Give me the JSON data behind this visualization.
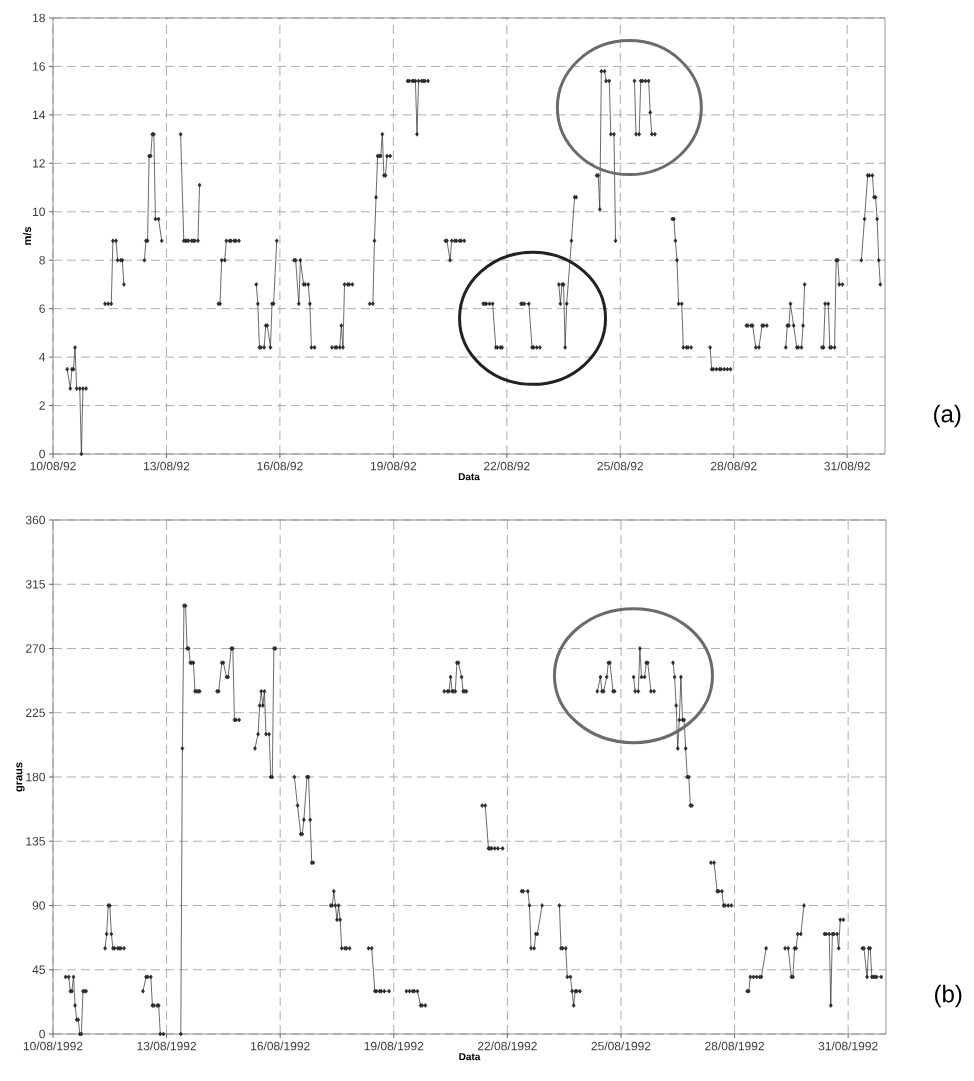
{
  "chart_data": [
    {
      "type": "line",
      "xlabel": "Data",
      "ylabel": "m/s",
      "xlim": [
        "1992-08-10",
        "1992-09-01"
      ],
      "ylim": [
        0,
        18
      ],
      "xticks": [
        {
          "value": "1992-08-10",
          "label": "10/08/92"
        },
        {
          "value": "1992-08-13",
          "label": "13/08/92"
        },
        {
          "value": "1992-08-16",
          "label": "16/08/92"
        },
        {
          "value": "1992-08-19",
          "label": "19/08/92"
        },
        {
          "value": "1992-08-22",
          "label": "22/08/92"
        },
        {
          "value": "1992-08-25",
          "label": "25/08/92"
        },
        {
          "value": "1992-08-28",
          "label": "28/08/92"
        },
        {
          "value": "1992-08-31",
          "label": "31/08/92"
        }
      ],
      "yticks": [
        0,
        2,
        4,
        6,
        8,
        10,
        12,
        14,
        16,
        18
      ],
      "grid": true,
      "marker": "diamond",
      "line_style": "solid",
      "annotations": [
        "(a)"
      ],
      "series": [
        {
          "color": "#2b2b2b",
          "x": [
            "1992-08-10T09:00",
            "1992-08-10T11:00",
            "1992-08-10T12:00",
            "1992-08-10T13:00",
            "1992-08-10T14:00",
            "1992-08-10T15:00",
            "1992-08-10T17:00",
            "1992-08-10T18:00",
            "1992-08-10T19:00",
            "1992-08-10T21:00",
            "1992-08-10T22:00",
            "1992-08-11T09:00",
            "1992-08-11T11:00",
            "1992-08-11T13:00",
            "1992-08-11T14:00",
            "1992-08-11T16:00",
            "1992-08-11T17:00",
            "1992-08-11T19:00",
            "1992-08-11T20:00",
            "1992-08-11T21:00",
            "1992-08-11T22:00",
            "1992-08-12T10:00",
            "1992-08-12T11:00",
            "1992-08-12T12:00",
            "1992-08-12T13:00",
            "1992-08-12T14:00",
            "1992-08-12T15:00",
            "1992-08-12T16:00",
            "1992-08-12T17:00",
            "1992-08-12T19:00",
            "1992-08-12T21:00",
            "1992-08-12T22:00",
            "1992-08-13T09:00",
            "1992-08-13T11:00",
            "1992-08-13T12:00",
            "1992-08-13T13:00",
            "1992-08-13T14:00",
            "1992-08-13T16:00",
            "1992-08-13T17:00",
            "1992-08-13T18:00",
            "1992-08-13T20:00",
            "1992-08-13T21:00",
            "1992-08-13T22:00",
            "1992-08-14T09:00",
            "1992-08-14T10:00",
            "1992-08-14T11:00",
            "1992-08-14T13:00",
            "1992-08-14T14:00",
            "1992-08-14T16:00",
            "1992-08-14T17:00",
            "1992-08-14T19:00",
            "1992-08-14T20:00",
            "1992-08-14T22:00",
            "1992-08-14T23:00",
            "1992-08-15T09:00",
            "1992-08-15T10:00",
            "1992-08-15T11:00",
            "1992-08-15T12:00",
            "1992-08-15T14:00",
            "1992-08-15T15:00",
            "1992-08-15T16:00",
            "1992-08-15T18:00",
            "1992-08-15T19:00",
            "1992-08-15T20:00",
            "1992-08-15T22:00",
            "1992-08-15T23:00",
            "1992-08-16T09:00",
            "1992-08-16T10:00",
            "1992-08-16T12:00",
            "1992-08-16T13:00",
            "1992-08-16T15:00",
            "1992-08-16T16:00",
            "1992-08-16T18:00",
            "1992-08-16T19:00",
            "1992-08-16T20:00",
            "1992-08-16T22:00",
            "1992-08-16T23:00",
            "1992-08-17T09:00",
            "1992-08-17T11:00",
            "1992-08-17T12:00",
            "1992-08-17T14:00",
            "1992-08-17T15:00",
            "1992-08-17T16:00",
            "1992-08-17T17:00",
            "1992-08-17T19:00",
            "1992-08-17T20:00",
            "1992-08-17T22:00",
            "1992-08-17T23:00",
            "1992-08-18T09:00",
            "1992-08-18T11:00",
            "1992-08-18T12:00",
            "1992-08-18T13:00",
            "1992-08-18T14:00",
            "1992-08-18T15:00",
            "1992-08-18T16:00",
            "1992-08-18T17:00",
            "1992-08-18T18:00",
            "1992-08-18T19:00",
            "1992-08-18T20:00",
            "1992-08-18T22:00",
            "1992-08-18T23:00",
            "1992-08-19T09:00",
            "1992-08-19T10:00",
            "1992-08-19T12:00",
            "1992-08-19T13:00",
            "1992-08-19T14:00",
            "1992-08-19T15:00",
            "1992-08-19T16:00",
            "1992-08-19T18:00",
            "1992-08-19T19:00",
            "1992-08-19T20:00",
            "1992-08-19T22:00",
            "1992-08-19T23:00",
            "1992-08-20T09:00",
            "1992-08-20T10:00",
            "1992-08-20T12:00",
            "1992-08-20T13:00",
            "1992-08-20T15:00",
            "1992-08-20T16:00",
            "1992-08-20T18:00",
            "1992-08-20T19:00",
            "1992-08-20T21:00",
            "1992-08-20T22:00",
            "1992-08-21T09:00",
            "1992-08-21T10:00",
            "1992-08-21T11:00",
            "1992-08-21T13:00",
            "1992-08-21T15:00",
            "1992-08-21T17:00",
            "1992-08-21T18:00",
            "1992-08-21T20:00",
            "1992-08-21T21:00",
            "1992-08-21T22:00",
            "1992-08-22T09:00",
            "1992-08-22T10:00",
            "1992-08-22T11:00",
            "1992-08-22T14:00",
            "1992-08-22T16:00",
            "1992-08-22T17:00",
            "1992-08-22T19:00",
            "1992-08-22T21:00",
            "1992-08-22T22:00",
            "1992-08-23T09:00",
            "1992-08-23T10:00",
            "1992-08-23T11:00",
            "1992-08-23T12:00",
            "1992-08-23T13:00",
            "1992-08-23T14:00",
            "1992-08-23T17:00",
            "1992-08-23T19:00",
            "1992-08-23T20:00",
            "1992-08-23T21:00",
            "1992-08-24T09:00",
            "1992-08-24T10:00",
            "1992-08-24T11:00",
            "1992-08-24T12:00",
            "1992-08-24T14:00",
            "1992-08-24T15:00",
            "1992-08-24T17:00",
            "1992-08-24T18:00",
            "1992-08-24T20:00",
            "1992-08-24T21:00",
            "1992-08-24T22:00",
            "1992-08-25T09:00",
            "1992-08-25T10:00",
            "1992-08-25T12:00",
            "1992-08-25T13:00",
            "1992-08-25T14:00",
            "1992-08-25T16:00",
            "1992-08-25T18:00",
            "1992-08-25T19:00",
            "1992-08-25T20:00",
            "1992-08-25T22:00",
            "1992-08-25T23:00",
            "1992-08-26T09:00",
            "1992-08-26T10:00",
            "1992-08-26T11:00",
            "1992-08-26T12:00",
            "1992-08-26T13:00",
            "1992-08-26T15:00",
            "1992-08-26T16:00",
            "1992-08-26T18:00",
            "1992-08-26T19:00",
            "1992-08-26T21:00",
            "1992-08-26T22:00",
            "1992-08-27T09:00",
            "1992-08-27T10:00",
            "1992-08-27T11:00",
            "1992-08-27T13:00",
            "1992-08-27T15:00",
            "1992-08-27T16:00",
            "1992-08-27T18:00",
            "1992-08-27T20:00",
            "1992-08-27T22:00",
            "1992-08-27T23:00",
            "1992-08-28T08:00",
            "1992-08-28T09:00",
            "1992-08-28T11:00",
            "1992-08-28T12:00",
            "1992-08-28T14:00",
            "1992-08-28T16:00",
            "1992-08-28T18:00",
            "1992-08-28T19:00",
            "1992-08-28T21:00",
            "1992-08-28T22:00",
            "1992-08-29T09:00",
            "1992-08-29T10:00",
            "1992-08-29T11:00",
            "1992-08-29T12:00",
            "1992-08-29T14:00",
            "1992-08-29T16:00",
            "1992-08-29T17:00",
            "1992-08-29T19:00",
            "1992-08-29T20:00",
            "1992-08-29T21:00",
            "1992-08-29T22:00",
            "1992-08-30T08:00",
            "1992-08-30T09:00",
            "1992-08-30T10:00",
            "1992-08-30T12:00",
            "1992-08-30T13:00",
            "1992-08-30T14:00",
            "1992-08-30T16:00",
            "1992-08-30T17:00",
            "1992-08-30T18:00",
            "1992-08-30T19:00",
            "1992-08-30T21:00",
            "1992-08-30T22:00",
            "1992-08-31T09:00",
            "1992-08-31T11:00",
            "1992-08-31T13:00",
            "1992-08-31T14:00",
            "1992-08-31T16:00",
            "1992-08-31T17:00",
            "1992-08-31T18:00",
            "1992-08-31T19:00",
            "1992-08-31T20:00",
            "1992-08-31T21:00"
          ],
          "values": [
            3.5,
            2.7,
            3.5,
            3.5,
            4.4,
            2.7,
            2.7,
            0,
            2.7,
            2.7,
            null,
            6.2,
            6.2,
            6.2,
            8.8,
            8.8,
            8.0,
            8.0,
            8.0,
            7.0,
            null,
            8.0,
            8.8,
            8.8,
            12.3,
            12.3,
            13.2,
            13.2,
            9.7,
            9.7,
            8.8,
            null,
            13.2,
            8.8,
            8.8,
            8.8,
            8.8,
            8.8,
            8.8,
            8.8,
            8.8,
            11.1,
            null,
            6.2,
            6.2,
            8.0,
            8.0,
            8.8,
            8.8,
            8.8,
            8.8,
            8.8,
            8.8,
            null,
            7.0,
            6.2,
            4.4,
            4.4,
            4.4,
            5.3,
            5.3,
            4.4,
            6.2,
            6.2,
            8.8,
            null,
            8.0,
            8.0,
            6.2,
            8.0,
            7.0,
            7.0,
            7.0,
            6.2,
            4.4,
            4.4,
            null,
            4.4,
            4.4,
            4.4,
            4.4,
            5.3,
            4.4,
            7.0,
            7.0,
            7.0,
            7.0,
            null,
            6.2,
            6.2,
            8.8,
            10.6,
            12.3,
            12.3,
            12.3,
            13.2,
            11.5,
            11.5,
            12.3,
            12.3,
            null,
            15.4,
            15.4,
            15.4,
            15.4,
            15.4,
            13.2,
            15.4,
            15.4,
            15.4,
            15.4,
            15.4,
            null,
            8.8,
            8.8,
            8.0,
            8.8,
            8.8,
            8.8,
            8.8,
            8.8,
            8.8,
            null,
            6.2,
            6.2,
            6.2,
            6.2,
            6.2,
            4.4,
            4.4,
            4.4,
            4.4,
            null,
            6.2,
            6.2,
            6.2,
            6.2,
            4.4,
            4.4,
            4.4,
            4.4,
            null,
            7.0,
            6.2,
            7.0,
            7.0,
            4.4,
            6.2,
            8.8,
            10.6,
            10.6,
            null,
            11.5,
            11.5,
            10.1,
            15.8,
            15.8,
            15.4,
            15.4,
            13.2,
            13.2,
            8.8,
            null,
            15.4,
            13.2,
            13.2,
            15.4,
            15.4,
            15.4,
            15.4,
            14.1,
            13.2,
            13.2,
            null,
            9.7,
            9.7,
            8.8,
            8.0,
            6.2,
            6.2,
            4.4,
            4.4,
            4.4,
            4.4,
            null,
            4.4,
            3.5,
            3.5,
            3.5,
            3.5,
            3.5,
            3.5,
            3.5,
            3.5,
            null,
            5.3,
            5.3,
            5.3,
            5.3,
            4.4,
            4.4,
            5.3,
            5.3,
            5.3,
            null,
            4.4,
            5.3,
            5.3,
            6.2,
            5.3,
            4.4,
            4.4,
            4.4,
            5.3,
            7.0,
            null,
            4.4,
            4.4,
            6.2,
            6.2,
            4.4,
            4.4,
            4.4,
            8.0,
            8.0,
            7.0,
            7.0,
            null,
            8.0,
            9.7,
            11.5,
            11.5,
            11.5,
            10.6,
            10.6,
            9.7,
            8.0,
            7.0
          ]
        }
      ]
    },
    {
      "type": "line",
      "xlabel": "Data",
      "ylabel": "graus",
      "xlim": [
        "1992-08-10",
        "1992-09-01"
      ],
      "ylim": [
        0,
        360
      ],
      "xticks": [
        {
          "value": "1992-08-10",
          "label": "10/08/1992"
        },
        {
          "value": "1992-08-13",
          "label": "13/08/1992"
        },
        {
          "value": "1992-08-16",
          "label": "16/08/1992"
        },
        {
          "value": "1992-08-19",
          "label": "19/08/1992"
        },
        {
          "value": "1992-08-22",
          "label": "22/08/1992"
        },
        {
          "value": "1992-08-25",
          "label": "25/08/1992"
        },
        {
          "value": "1992-08-28",
          "label": "28/08/1992"
        },
        {
          "value": "1992-08-31",
          "label": "31/08/1992"
        }
      ],
      "yticks": [
        0,
        45,
        90,
        135,
        180,
        225,
        270,
        315,
        360
      ],
      "grid": true,
      "marker": "diamond",
      "line_style": "solid",
      "annotations": [
        "(b)"
      ],
      "series": [
        {
          "color": "#2b2b2b",
          "x": [
            "1992-08-10T08:00",
            "1992-08-10T10:00",
            "1992-08-10T11:00",
            "1992-08-10T12:00",
            "1992-08-10T13:00",
            "1992-08-10T14:00",
            "1992-08-10T15:00",
            "1992-08-10T16:00",
            "1992-08-10T17:00",
            "1992-08-10T18:00",
            "1992-08-10T19:00",
            "1992-08-10T20:00",
            "1992-08-10T21:00",
            "1992-08-10T22:00",
            "1992-08-11T09:00",
            "1992-08-11T10:00",
            "1992-08-11T11:00",
            "1992-08-11T12:00",
            "1992-08-11T13:00",
            "1992-08-11T14:00",
            "1992-08-11T15:00",
            "1992-08-11T17:00",
            "1992-08-11T18:00",
            "1992-08-11T19:00",
            "1992-08-11T21:00",
            "1992-08-11T22:00",
            "1992-08-12T09:00",
            "1992-08-12T11:00",
            "1992-08-12T12:00",
            "1992-08-12T14:00",
            "1992-08-12T15:00",
            "1992-08-12T16:00",
            "1992-08-12T18:00",
            "1992-08-12T19:00",
            "1992-08-12T20:00",
            "1992-08-12T22:00",
            "1992-08-12T23:00",
            "1992-08-13T09:00",
            "1992-08-13T10:00",
            "1992-08-13T11:00",
            "1992-08-13T12:00",
            "1992-08-13T13:00",
            "1992-08-13T14:00",
            "1992-08-13T15:00",
            "1992-08-13T16:00",
            "1992-08-13T17:00",
            "1992-08-13T18:00",
            "1992-08-13T19:00",
            "1992-08-13T20:00",
            "1992-08-13T21:00",
            "1992-08-13T22:00",
            "1992-08-14T08:00",
            "1992-08-14T09:00",
            "1992-08-14T11:00",
            "1992-08-14T12:00",
            "1992-08-14T14:00",
            "1992-08-14T15:00",
            "1992-08-14T17:00",
            "1992-08-14T18:00",
            "1992-08-14T19:00",
            "1992-08-14T20:00",
            "1992-08-14T22:00",
            "1992-08-14T23:00",
            "1992-08-15T08:00",
            "1992-08-15T10:00",
            "1992-08-15T11:00",
            "1992-08-15T12:00",
            "1992-08-15T13:00",
            "1992-08-15T14:00",
            "1992-08-15T15:00",
            "1992-08-15T17:00",
            "1992-08-15T18:00",
            "1992-08-15T19:00",
            "1992-08-15T20:00",
            "1992-08-15T21:00",
            "1992-08-15T22:00",
            "1992-08-16T09:00",
            "1992-08-16T11:00",
            "1992-08-16T13:00",
            "1992-08-16T14:00",
            "1992-08-16T15:00",
            "1992-08-16T17:00",
            "1992-08-16T18:00",
            "1992-08-16T19:00",
            "1992-08-16T20:00",
            "1992-08-16T21:00",
            "1992-08-16T22:00",
            "1992-08-17T08:00",
            "1992-08-17T09:00",
            "1992-08-17T10:00",
            "1992-08-17T11:00",
            "1992-08-17T12:00",
            "1992-08-17T13:00",
            "1992-08-17T14:00",
            "1992-08-17T15:00",
            "1992-08-17T17:00",
            "1992-08-17T18:00",
            "1992-08-17T20:00",
            "1992-08-17T21:00",
            "1992-08-18T08:00",
            "1992-08-18T10:00",
            "1992-08-18T12:00",
            "1992-08-18T13:00",
            "1992-08-18T15:00",
            "1992-08-18T16:00",
            "1992-08-18T18:00",
            "1992-08-18T21:00",
            "1992-08-18T22:00",
            "1992-08-19T08:00",
            "1992-08-19T10:00",
            "1992-08-19T12:00",
            "1992-08-19T13:00",
            "1992-08-19T15:00",
            "1992-08-19T17:00",
            "1992-08-19T18:00",
            "1992-08-19T20:00",
            "1992-08-19T21:00",
            "1992-08-20T08:00",
            "1992-08-20T10:00",
            "1992-08-20T11:00",
            "1992-08-20T12:00",
            "1992-08-20T13:00",
            "1992-08-20T14:00",
            "1992-08-20T15:00",
            "1992-08-20T16:00",
            "1992-08-20T17:00",
            "1992-08-20T19:00",
            "1992-08-20T20:00",
            "1992-08-20T21:00",
            "1992-08-20T22:00",
            "1992-08-20T23:00",
            "1992-08-21T08:00",
            "1992-08-21T10:00",
            "1992-08-21T12:00",
            "1992-08-21T13:00",
            "1992-08-21T14:00",
            "1992-08-21T16:00",
            "1992-08-21T18:00",
            "1992-08-21T21:00",
            "1992-08-21T22:00",
            "1992-08-22T09:00",
            "1992-08-22T10:00",
            "1992-08-22T13:00",
            "1992-08-22T14:00",
            "1992-08-22T15:00",
            "1992-08-22T17:00",
            "1992-08-22T18:00",
            "1992-08-22T19:00",
            "1992-08-22T22:00",
            "1992-08-22T23:00",
            "1992-08-23T09:00",
            "1992-08-23T10:00",
            "1992-08-23T11:00",
            "1992-08-23T13:00",
            "1992-08-23T14:00",
            "1992-08-23T16:00",
            "1992-08-23T17:00",
            "1992-08-23T18:00",
            "1992-08-23T19:00",
            "1992-08-23T20:00",
            "1992-08-23T22:00",
            "1992-08-23T23:00",
            "1992-08-24T09:00",
            "1992-08-24T11:00",
            "1992-08-24T12:00",
            "1992-08-24T13:00",
            "1992-08-24T15:00",
            "1992-08-24T16:00",
            "1992-08-24T17:00",
            "1992-08-24T19:00",
            "1992-08-24T20:00",
            "1992-08-24T21:00",
            "1992-08-25T08:00",
            "1992-08-25T09:00",
            "1992-08-25T11:00",
            "1992-08-25T12:00",
            "1992-08-25T13:00",
            "1992-08-25T15:00",
            "1992-08-25T16:00",
            "1992-08-25T17:00",
            "1992-08-25T19:00",
            "1992-08-25T21:00",
            "1992-08-25T22:00",
            "1992-08-26T09:00",
            "1992-08-26T10:00",
            "1992-08-26T11:00",
            "1992-08-26T12:00",
            "1992-08-26T13:00",
            "1992-08-26T14:00",
            "1992-08-26T15:00",
            "1992-08-26T16:00",
            "1992-08-26T17:00",
            "1992-08-26T18:00",
            "1992-08-26T19:00",
            "1992-08-26T20:00",
            "1992-08-26T21:00",
            "1992-08-26T22:00",
            "1992-08-27T09:00",
            "1992-08-27T11:00",
            "1992-08-27T13:00",
            "1992-08-27T14:00",
            "1992-08-27T16:00",
            "1992-08-27T17:00",
            "1992-08-27T18:00",
            "1992-08-27T20:00",
            "1992-08-27T22:00",
            "1992-08-27T23:00",
            "1992-08-28T08:00",
            "1992-08-28T09:00",
            "1992-08-28T10:00",
            "1992-08-28T12:00",
            "1992-08-28T14:00",
            "1992-08-28T16:00",
            "1992-08-28T17:00",
            "1992-08-28T20:00",
            "1992-08-28T21:00",
            "1992-08-29T08:00",
            "1992-08-29T10:00",
            "1992-08-29T12:00",
            "1992-08-29T13:00",
            "1992-08-29T14:00",
            "1992-08-29T15:00",
            "1992-08-29T16:00",
            "1992-08-29T18:00",
            "1992-08-29T20:00",
            "1992-08-29T21:00",
            "1992-08-30T09:00",
            "1992-08-30T10:00",
            "1992-08-30T12:00",
            "1992-08-30T13:00",
            "1992-08-30T14:00",
            "1992-08-30T15:00",
            "1992-08-30T17:00",
            "1992-08-30T18:00",
            "1992-08-30T19:00",
            "1992-08-30T21:00",
            "1992-08-30T22:00",
            "1992-08-31T09:00",
            "1992-08-31T10:00",
            "1992-08-31T12:00",
            "1992-08-31T13:00",
            "1992-08-31T14:00",
            "1992-08-31T15:00",
            "1992-08-31T16:00",
            "1992-08-31T17:00",
            "1992-08-31T18:00",
            "1992-08-31T21:00"
          ],
          "values": [
            40,
            40,
            30,
            30,
            40,
            20,
            10,
            10,
            0,
            0,
            30,
            30,
            30,
            null,
            60,
            70,
            90,
            90,
            70,
            60,
            60,
            60,
            60,
            60,
            60,
            null,
            30,
            40,
            40,
            40,
            20,
            20,
            20,
            20,
            0,
            0,
            null,
            0,
            200,
            300,
            300,
            270,
            270,
            260,
            260,
            260,
            240,
            240,
            240,
            240,
            null,
            240,
            240,
            260,
            260,
            250,
            250,
            270,
            270,
            220,
            220,
            220,
            null,
            200,
            210,
            230,
            240,
            230,
            240,
            210,
            210,
            180,
            180,
            270,
            270,
            null,
            180,
            160,
            140,
            140,
            150,
            180,
            180,
            150,
            120,
            120,
            null,
            90,
            90,
            100,
            90,
            80,
            90,
            80,
            60,
            60,
            60,
            60,
            null,
            60,
            60,
            30,
            30,
            30,
            30,
            30,
            30,
            null,
            30,
            30,
            30,
            30,
            30,
            20,
            20,
            20,
            null,
            240,
            240,
            240,
            250,
            240,
            240,
            240,
            260,
            260,
            250,
            240,
            240,
            240,
            null,
            160,
            160,
            130,
            130,
            130,
            130,
            130,
            130,
            null,
            100,
            100,
            100,
            90,
            60,
            60,
            70,
            70,
            90,
            null,
            90,
            60,
            60,
            60,
            40,
            40,
            30,
            20,
            30,
            30,
            30,
            null,
            240,
            250,
            240,
            240,
            250,
            260,
            260,
            240,
            240,
            null,
            250,
            240,
            240,
            270,
            250,
            250,
            260,
            260,
            240,
            240,
            null,
            260,
            250,
            230,
            200,
            220,
            250,
            220,
            220,
            200,
            180,
            180,
            160,
            160,
            null,
            120,
            120,
            100,
            100,
            100,
            90,
            90,
            90,
            90,
            null,
            30,
            30,
            40,
            40,
            40,
            40,
            40,
            60,
            null,
            60,
            60,
            40,
            40,
            60,
            60,
            70,
            70,
            90,
            null,
            70,
            70,
            70,
            20,
            70,
            70,
            70,
            60,
            80,
            80,
            null,
            60,
            60,
            40,
            60,
            60,
            40,
            40,
            40,
            40,
            40
          ]
        }
      ]
    }
  ]
}
